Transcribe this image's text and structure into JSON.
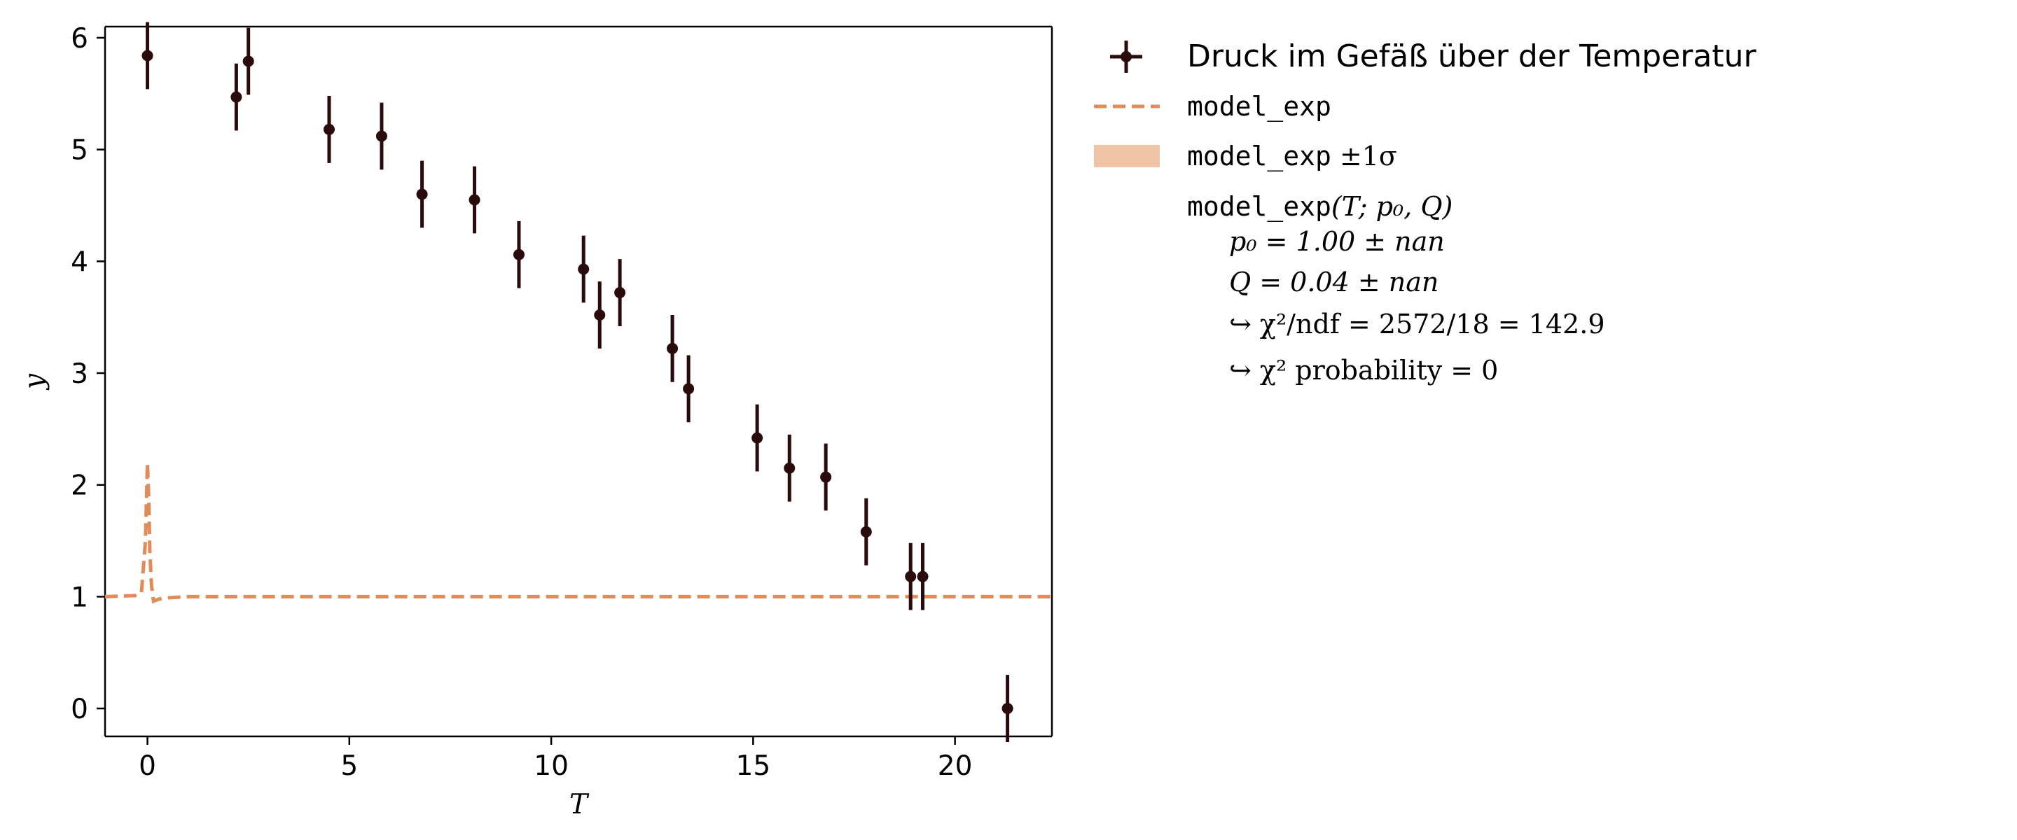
{
  "chart_data": {
    "type": "scatter",
    "title": "",
    "xlabel": "T",
    "ylabel": "y",
    "xlim": [
      -1.05,
      22.4
    ],
    "ylim": [
      -0.25,
      6.1
    ],
    "xticks": [
      0,
      5,
      10,
      15,
      20
    ],
    "yticks": [
      0,
      1,
      2,
      3,
      4,
      5,
      6
    ],
    "grid": false,
    "legend_location": "outside-right",
    "colors": {
      "data": "#2a0a0a",
      "model": "#e08c5a",
      "band": "#f0c4a6"
    },
    "series": [
      {
        "name": "Druck im Gefäß über der Temperatur",
        "kind": "errorbar",
        "x": [
          0.0,
          2.2,
          2.5,
          4.5,
          5.8,
          6.8,
          8.1,
          9.2,
          10.8,
          11.2,
          11.7,
          13.0,
          13.4,
          15.1,
          15.9,
          16.8,
          17.8,
          18.9,
          19.2,
          21.3
        ],
        "y": [
          5.84,
          5.47,
          5.79,
          5.18,
          5.12,
          4.6,
          4.55,
          4.06,
          3.93,
          3.52,
          3.72,
          3.22,
          2.86,
          2.42,
          2.15,
          2.07,
          1.58,
          1.18,
          1.18,
          0.0
        ],
        "yerr": 0.3
      },
      {
        "name": "model_exp",
        "kind": "line",
        "x": [
          -1.05,
          -0.3,
          -0.15,
          -0.05,
          0.0,
          0.03,
          0.06,
          0.1,
          0.15,
          0.3,
          0.5,
          1.0,
          5,
          10,
          15,
          20,
          22.4
        ],
        "y": [
          1.0,
          1.01,
          1.03,
          1.5,
          2.2,
          1.9,
          1.4,
          1.1,
          0.96,
          0.98,
          0.99,
          1.0,
          1.0,
          1.0,
          1.0,
          1.0,
          1.0
        ]
      }
    ],
    "legend": {
      "data_label": "Druck im Gefäß über der Temperatur",
      "model_label": "model_exp",
      "band_label_mono": "model_exp",
      "band_label_math": "±1σ",
      "fit_func_mono": "model_exp",
      "fit_func_args": "(T; p₀, Q)",
      "param_lines": [
        "p₀ = 1.00 ± nan",
        "Q = 0.04 ± nan"
      ],
      "chi2_ndf": "↪ χ²/ndf = 2572/18 = 142.9",
      "chi2_prob": "↪ χ² probability = 0"
    }
  }
}
